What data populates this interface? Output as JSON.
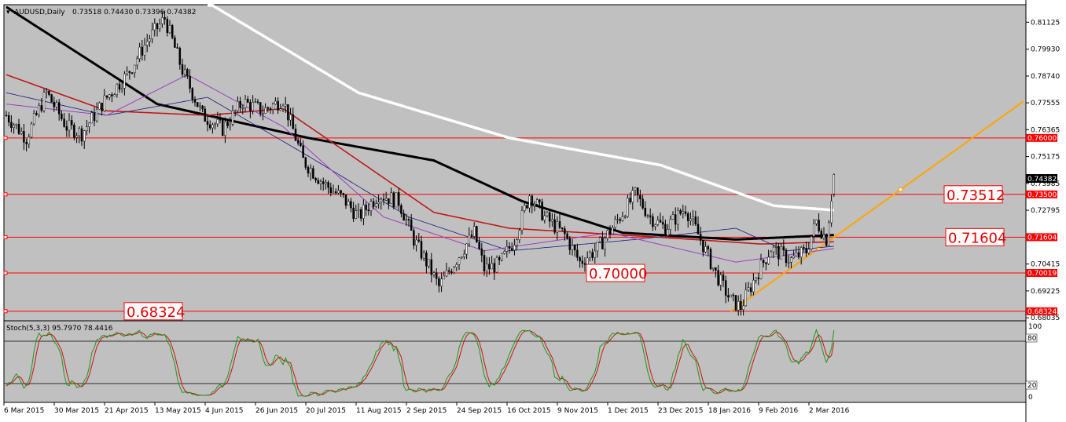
{
  "header": {
    "symbol": "AUDUSD,Daily",
    "ohlc": "0.73518 0.74430 0.73396 0.74382"
  },
  "indicator": {
    "label": "Stoch(5,3,3) 95.7970 78.4416",
    "levels": {
      "top": "100",
      "upper": "80",
      "lower": "20",
      "bottom": "0"
    }
  },
  "colors": {
    "background": "#c0c0c0",
    "bull_candle": "#000000",
    "bear_candle": "#000000",
    "level_line": "#ff0000",
    "trend_line": "#ffa500",
    "ma_white": "#ffffff",
    "ma_black": "#000000",
    "ma_red": "#c01818",
    "ma_navy": "#1a1a7a",
    "ma_purple": "#9a3fc2",
    "stoch_main": "#1a9a1a",
    "stoch_signal": "#d01010"
  },
  "chart_data": {
    "type": "candlestick",
    "symbol": "AUDUSD",
    "timeframe": "Daily",
    "ylim": [
      0.679,
      0.819
    ],
    "price_ticks": [
      "0.81125",
      "0.79930",
      "0.78740",
      "0.77555",
      "0.76365",
      "0.75175",
      "0.73985",
      "0.72795",
      "0.70415",
      "0.69225",
      "0.68035"
    ],
    "date_ticks": [
      "6 Mar 2015",
      "30 Mar 2015",
      "21 Apr 2015",
      "13 May 2015",
      "4 Jun 2015",
      "26 Jun 2015",
      "20 Jul 2015",
      "11 Aug 2015",
      "2 Sep 2015",
      "24 Sep 2015",
      "16 Oct 2015",
      "9 Nov 2015",
      "1 Dec 2015",
      "23 Dec 2015",
      "18 Jan 2016",
      "9 Feb 2016",
      "2 Mar 2016"
    ],
    "levels": [
      {
        "value": 0.76,
        "tag": "0.76000",
        "big_label": ""
      },
      {
        "value": 0.735,
        "tag": "0.73500",
        "big_label": "0.73512"
      },
      {
        "value": 0.71604,
        "tag": "0.71604",
        "big_label": "0.71604"
      },
      {
        "value": 0.70019,
        "tag": "0.70019",
        "big_label": "0.70000"
      },
      {
        "value": 0.68324,
        "tag": "0.68324",
        "big_label": "0.68324"
      }
    ],
    "current_price": "0.74382",
    "trend_line": {
      "from": [
        "18 Jan 2016",
        0.6832
      ],
      "to": [
        "end",
        0.7762
      ]
    },
    "path_points": [
      [
        0,
        0.77
      ],
      [
        8,
        0.76
      ],
      [
        16,
        0.78
      ],
      [
        24,
        0.765
      ],
      [
        30,
        0.762
      ],
      [
        40,
        0.778
      ],
      [
        48,
        0.788
      ],
      [
        56,
        0.803
      ],
      [
        63,
        0.813
      ],
      [
        70,
        0.79
      ],
      [
        78,
        0.77
      ],
      [
        86,
        0.764
      ],
      [
        94,
        0.776
      ],
      [
        102,
        0.772
      ],
      [
        110,
        0.777
      ],
      [
        118,
        0.75
      ],
      [
        126,
        0.74
      ],
      [
        134,
        0.733
      ],
      [
        140,
        0.725
      ],
      [
        148,
        0.735
      ],
      [
        156,
        0.732
      ],
      [
        162,
        0.715
      ],
      [
        168,
        0.703
      ],
      [
        172,
        0.694
      ],
      [
        180,
        0.708
      ],
      [
        186,
        0.718
      ],
      [
        190,
        0.702
      ],
      [
        196,
        0.704
      ],
      [
        202,
        0.715
      ],
      [
        208,
        0.735
      ],
      [
        214,
        0.725
      ],
      [
        222,
        0.717
      ],
      [
        228,
        0.705
      ],
      [
        235,
        0.711
      ],
      [
        242,
        0.722
      ],
      [
        250,
        0.735
      ],
      [
        256,
        0.725
      ],
      [
        262,
        0.72
      ],
      [
        270,
        0.729
      ],
      [
        276,
        0.715
      ],
      [
        282,
        0.7
      ],
      [
        288,
        0.688
      ],
      [
        292,
        0.685
      ],
      [
        298,
        0.699
      ],
      [
        304,
        0.711
      ],
      [
        312,
        0.706
      ],
      [
        318,
        0.71
      ],
      [
        322,
        0.723
      ],
      [
        326,
        0.715
      ],
      [
        329,
        0.7438
      ]
    ],
    "moving_averages": [
      {
        "color": "white",
        "points": [
          [
            80,
            0.82
          ],
          [
            140,
            0.78
          ],
          [
            200,
            0.76
          ],
          [
            260,
            0.748
          ],
          [
            305,
            0.73
          ],
          [
            329,
            0.728
          ]
        ]
      },
      {
        "color": "black",
        "points": [
          [
            0,
            0.818
          ],
          [
            60,
            0.775
          ],
          [
            120,
            0.76
          ],
          [
            170,
            0.75
          ],
          [
            205,
            0.732
          ],
          [
            245,
            0.718
          ],
          [
            290,
            0.715
          ],
          [
            329,
            0.717
          ]
        ]
      },
      {
        "color": "red",
        "points": [
          [
            0,
            0.788
          ],
          [
            40,
            0.772
          ],
          [
            80,
            0.77
          ],
          [
            110,
            0.773
          ],
          [
            140,
            0.75
          ],
          [
            170,
            0.727
          ],
          [
            200,
            0.72
          ],
          [
            260,
            0.716
          ],
          [
            300,
            0.713
          ],
          [
            329,
            0.714
          ]
        ]
      },
      {
        "color": "navy",
        "points": [
          [
            0,
            0.78
          ],
          [
            40,
            0.77
          ],
          [
            80,
            0.778
          ],
          [
            120,
            0.752
          ],
          [
            160,
            0.725
          ],
          [
            200,
            0.71
          ],
          [
            250,
            0.715
          ],
          [
            290,
            0.72
          ],
          [
            310,
            0.71
          ],
          [
            329,
            0.712
          ]
        ]
      },
      {
        "color": "purple",
        "points": [
          [
            0,
            0.775
          ],
          [
            40,
            0.77
          ],
          [
            72,
            0.788
          ],
          [
            110,
            0.765
          ],
          [
            150,
            0.725
          ],
          [
            190,
            0.71
          ],
          [
            240,
            0.718
          ],
          [
            290,
            0.705
          ],
          [
            329,
            0.711
          ]
        ]
      }
    ],
    "stoch_period_days": 13,
    "stoch_last": {
      "main": 95.797,
      "signal": 78.4416
    }
  }
}
